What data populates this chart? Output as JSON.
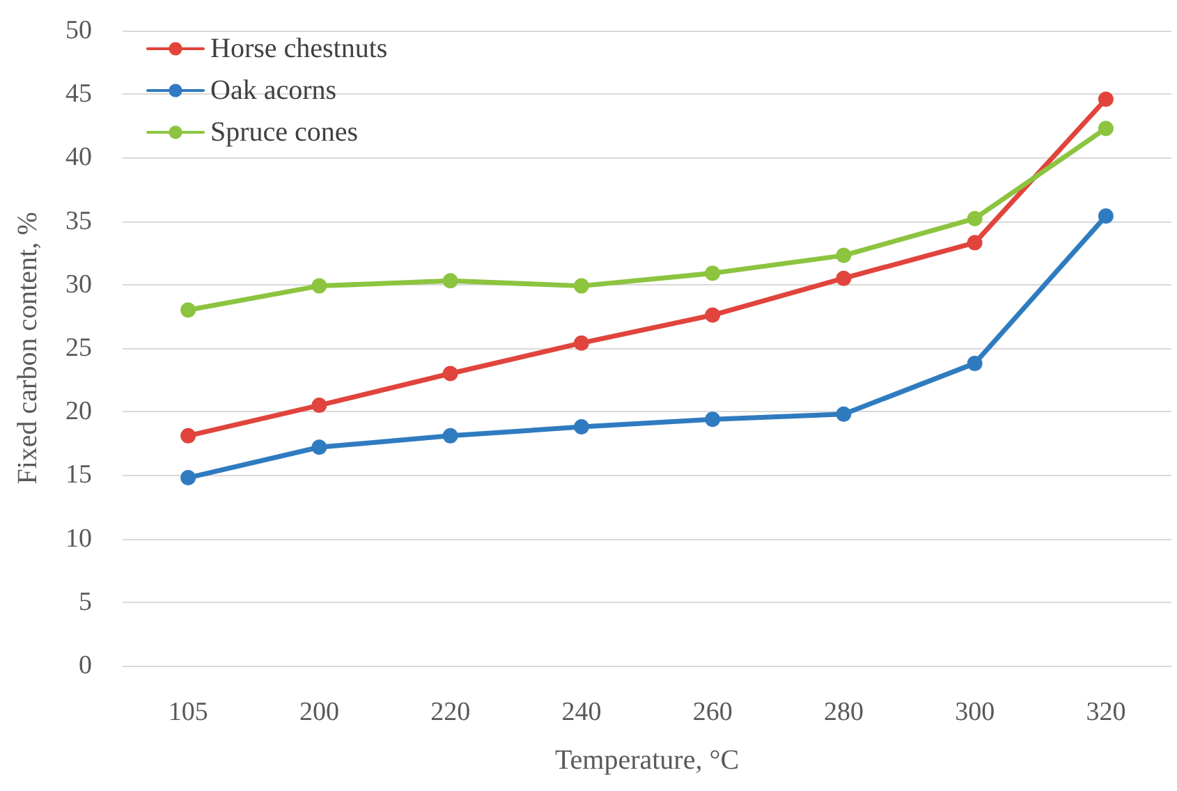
{
  "chart_data": {
    "type": "line",
    "xlabel": "Temperature, °C",
    "ylabel": "Fixed carbon content, %",
    "categories": [
      "105",
      "200",
      "220",
      "240",
      "260",
      "280",
      "300",
      "320"
    ],
    "series": [
      {
        "name": "Horse chestnuts",
        "color": "#e0443c",
        "values": [
          18.1,
          20.5,
          23.0,
          25.4,
          27.6,
          30.5,
          33.3,
          44.6
        ]
      },
      {
        "name": "Oak acorns",
        "color": "#2f7bc0",
        "values": [
          14.8,
          17.2,
          18.1,
          18.8,
          19.4,
          19.8,
          23.8,
          35.4
        ]
      },
      {
        "name": "Spruce cones",
        "color": "#8cc43f",
        "values": [
          28.0,
          29.9,
          30.3,
          29.9,
          30.9,
          32.3,
          35.2,
          42.3
        ]
      }
    ],
    "ylim": [
      0,
      50
    ],
    "yticks": [
      0,
      5,
      10,
      15,
      20,
      25,
      30,
      35,
      40,
      45,
      50
    ],
    "grid": "y",
    "legend": "top left",
    "marker": "circle",
    "line_style": "solid"
  }
}
